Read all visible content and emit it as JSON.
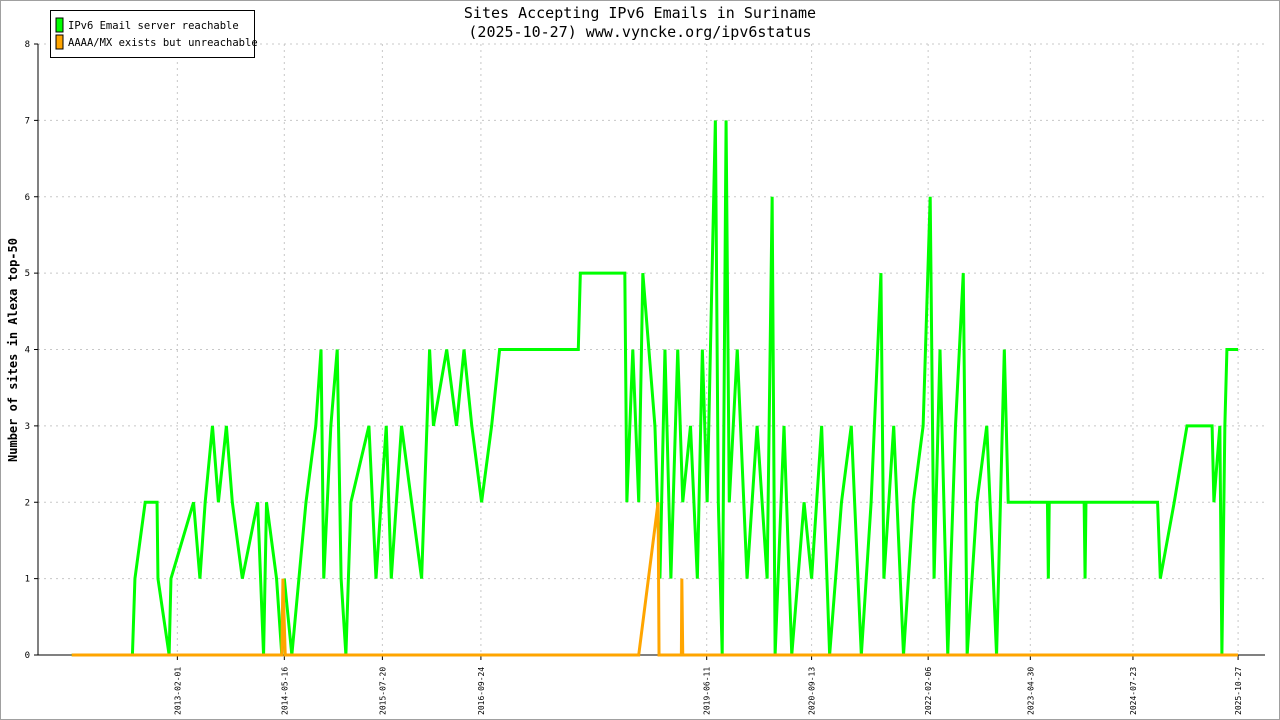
{
  "chart_data": {
    "type": "line",
    "title": "Sites Accepting IPv6 Emails in Suriname",
    "subtitle": "(2025-10-27) www.vyncke.org/ipv6status",
    "y_label": "Number of sites in Alexa top-50",
    "xlim": [
      "2011-06-01",
      "2026-02-22"
    ],
    "ylim": [
      0,
      8
    ],
    "yticks": [
      0,
      1,
      2,
      3,
      4,
      5,
      6,
      7,
      8
    ],
    "xticks": [
      "2013-02-01",
      "2014-05-16",
      "2015-07-20",
      "2016-09-24",
      "2019-06-11",
      "2020-09-13",
      "2022-02-06",
      "2023-04-30",
      "2024-07-23",
      "2025-10-27"
    ],
    "grid": true,
    "legend": "top-left",
    "series": [
      {
        "name": "IPv6 Email server reachable",
        "color": "#00ff00",
        "x": [
          "2011-10-27",
          "2012-07-19",
          "2012-07-30",
          "2012-09-13",
          "2012-11-04",
          "2012-11-08",
          "2012-12-27",
          "2013-01-04",
          "2013-04-13",
          "2013-05-11",
          "2013-06-03",
          "2013-07-05",
          "2013-07-31",
          "2013-09-04",
          "2013-09-30",
          "2013-11-13",
          "2014-01-19",
          "2014-02-14",
          "2014-02-27",
          "2014-04-12",
          "2014-05-05",
          "2014-05-16",
          "2014-06-18",
          "2014-07-19",
          "2014-08-19",
          "2014-10-01",
          "2014-10-24",
          "2014-11-05",
          "2014-12-06",
          "2015-01-03",
          "2015-01-20",
          "2015-02-10",
          "2015-03-04",
          "2015-05-22",
          "2015-06-22",
          "2015-08-06",
          "2015-08-28",
          "2015-10-12",
          "2015-11-25",
          "2016-01-08",
          "2016-02-12",
          "2016-02-29",
          "2016-04-27",
          "2016-06-09",
          "2016-07-12",
          "2016-08-15",
          "2016-09-27",
          "2016-11-10",
          "2016-12-15",
          "2017-11-25",
          "2017-12-04",
          "2018-06-17",
          "2018-06-26",
          "2018-07-22",
          "2018-08-17",
          "2018-09-04",
          "2018-10-27",
          "2018-11-18",
          "2018-12-10",
          "2019-01-05",
          "2019-02-04",
          "2019-02-26",
          "2019-04-01",
          "2019-05-01",
          "2019-05-23",
          "2019-06-13",
          "2019-07-19",
          "2019-08-01",
          "2019-08-18",
          "2019-09-04",
          "2019-09-18",
          "2019-10-23",
          "2019-12-05",
          "2020-01-18",
          "2020-03-02",
          "2020-03-24",
          "2020-04-06",
          "2020-05-15",
          "2020-06-18",
          "2020-08-11",
          "2020-09-13",
          "2020-10-27",
          "2020-12-01",
          "2021-01-22",
          "2021-03-06",
          "2021-04-19",
          "2021-06-01",
          "2021-07-14",
          "2021-07-27",
          "2021-09-08",
          "2021-10-21",
          "2021-12-03",
          "2022-01-15",
          "2022-02-15",
          "2022-03-04",
          "2022-03-30",
          "2022-05-03",
          "2022-06-06",
          "2022-07-10",
          "2022-07-27",
          "2022-09-08",
          "2022-10-21",
          "2022-12-03",
          "2023-01-06",
          "2023-01-23",
          "2023-07-14",
          "2023-07-18",
          "2023-07-22",
          "2023-12-22",
          "2023-12-26",
          "2023-12-30",
          "2024-11-08",
          "2024-11-20",
          "2025-01-20",
          "2025-03-17",
          "2025-07-05",
          "2025-07-13",
          "2025-08-08",
          "2025-08-17",
          "2025-08-30",
          "2025-09-08",
          "2025-10-27"
        ],
        "values": [
          0,
          0,
          1,
          2,
          2,
          1,
          0,
          1,
          2,
          1,
          2,
          3,
          2,
          3,
          2,
          1,
          2,
          0,
          2,
          1,
          0,
          1,
          0,
          1,
          2,
          3,
          4,
          1,
          3,
          4,
          1,
          0,
          2,
          3,
          1,
          3,
          1,
          3,
          2,
          1,
          4,
          3,
          4,
          3,
          4,
          3,
          2,
          3,
          4,
          4,
          5,
          5,
          2,
          4,
          2,
          5,
          3,
          1,
          4,
          1,
          4,
          2,
          3,
          1,
          4,
          2,
          7,
          2,
          0,
          7,
          2,
          4,
          1,
          3,
          1,
          6,
          0,
          3,
          0,
          2,
          1,
          3,
          0,
          2,
          3,
          0,
          2,
          5,
          1,
          3,
          0,
          2,
          3,
          6,
          1,
          4,
          0,
          3,
          5,
          0,
          2,
          3,
          0,
          4,
          2,
          2,
          1,
          2,
          2,
          1,
          2,
          2,
          1,
          2,
          3,
          3,
          2,
          3,
          0,
          3,
          4,
          4
        ]
      },
      {
        "name": "AAAA/MX exists but unreachable",
        "color": "#ffa500",
        "x": [
          "2011-10-27",
          "2014-05-05",
          "2014-05-10",
          "2014-05-20",
          "2018-08-17",
          "2018-11-10",
          "2018-11-14",
          "2019-02-20",
          "2019-02-22",
          "2019-02-26",
          "2025-10-27"
        ],
        "values": [
          0,
          0,
          1,
          0,
          0,
          2,
          0,
          0,
          1,
          0,
          0
        ]
      }
    ]
  }
}
